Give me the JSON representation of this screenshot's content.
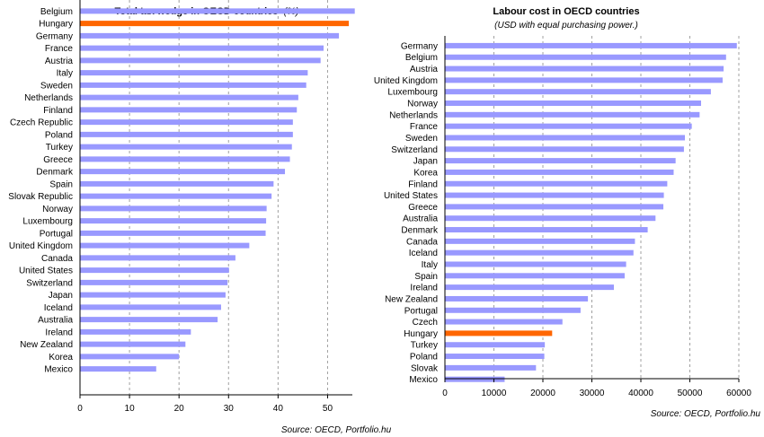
{
  "colors": {
    "bar": "#9999ff",
    "highlight": "#ff6600",
    "axis": "#000000",
    "grid": "#a0a0a0"
  },
  "chart_data": [
    {
      "type": "bar",
      "orientation": "horizontal",
      "title": "Total tax wedge in OECD countries",
      "title_italic": "(%)",
      "subtitle": "",
      "source": "Source: OECD, Portfolio.hu",
      "highlight": "Hungary",
      "grid": "vertical dashed",
      "xlim": [
        0,
        55
      ],
      "xticks": [
        0,
        10,
        20,
        30,
        40,
        50
      ],
      "categories": [
        "Belgium",
        "Hungary",
        "Germany",
        "France",
        "Austria",
        "Italy",
        "Sweden",
        "Netherlands",
        "Finland",
        "Czech Republic",
        "Poland",
        "Turkey",
        "Greece",
        "Denmark",
        "Spain",
        "Slovak Republic",
        "Norway",
        "Luxembourg",
        "Portugal",
        "United Kingdom",
        "Canada",
        "United States",
        "Switzerland",
        "Japan",
        "Iceland",
        "Australia",
        "Ireland",
        "New Zealand",
        "Korea",
        "Mexico"
      ],
      "values": [
        55.4,
        54.2,
        52.2,
        49.1,
        48.5,
        45.9,
        45.6,
        44.0,
        43.7,
        42.9,
        42.9,
        42.7,
        42.3,
        41.3,
        39.0,
        38.6,
        37.6,
        37.5,
        37.4,
        34.1,
        31.3,
        30.0,
        29.7,
        29.3,
        28.4,
        27.7,
        22.3,
        21.2,
        19.9,
        15.3
      ]
    },
    {
      "type": "bar",
      "orientation": "horizontal",
      "title": "Labour cost in OECD countries",
      "subtitle": "(USD with equal purchasing power.)",
      "source": "Source: OECD, Portfolio.hu",
      "highlight": "Hungary",
      "grid": "vertical dashed",
      "xlim": [
        0,
        60000
      ],
      "xticks": [
        0,
        10000,
        20000,
        30000,
        40000,
        50000,
        60000
      ],
      "categories": [
        "Germany",
        "Belgium",
        "Austria",
        "United Kingdom",
        "Luxembourg",
        "Norway",
        "Netherlands",
        "France",
        "Sweden",
        "Switzerland",
        "Japan",
        "Korea",
        "Finland",
        "United States",
        "Greece",
        "Australia",
        "Denmark",
        "Canada",
        "Iceland",
        "Italy",
        "Spain",
        "Ireland",
        "New Zealand",
        "Portugal",
        "Czech",
        "Hungary",
        "Turkey",
        "Poland",
        "Slovak",
        "Mexico"
      ],
      "values": [
        59500,
        57300,
        56800,
        56600,
        54200,
        52200,
        51900,
        50300,
        48900,
        48700,
        47000,
        46600,
        45300,
        44600,
        44500,
        42900,
        41300,
        38700,
        38400,
        36900,
        36600,
        34400,
        29100,
        27600,
        23900,
        21800,
        20300,
        20200,
        18500,
        12100
      ]
    }
  ]
}
